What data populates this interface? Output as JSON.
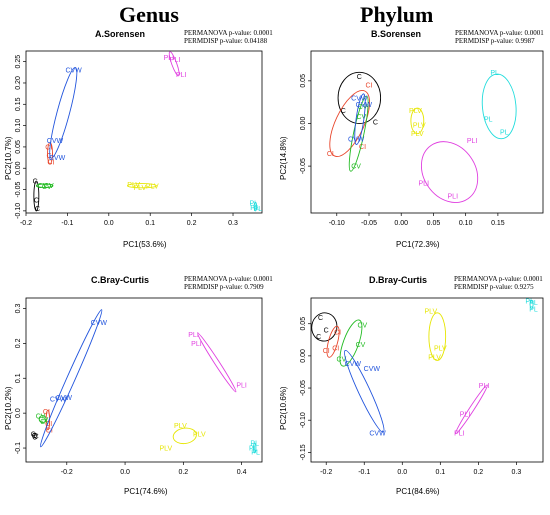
{
  "headings": {
    "left": "Genus",
    "right": "Phylum"
  },
  "chart_data": [
    {
      "type": "scatter",
      "title": "A.Sorensen",
      "stats": [
        "PERMANOVA p-value: 0.0001",
        "PERMDISP p-value: 0.04188"
      ],
      "xlabel": "PC1(53.6%)",
      "ylabel": "PC2(10.7%)",
      "xlim": [
        -0.2,
        0.37
      ],
      "ylim": [
        -0.105,
        0.275
      ],
      "xticks": [
        -0.2,
        -0.1,
        0.0,
        0.1,
        0.2,
        0.3
      ],
      "xtick_labels": [
        "-0.2",
        "-0.1",
        "0.0",
        "0.1",
        "0.2",
        "0.3"
      ],
      "yticks": [
        -0.1,
        -0.05,
        0.0,
        0.05,
        0.1,
        0.15,
        0.2,
        0.25
      ],
      "ytick_labels": [
        "-0.10",
        "-0.05",
        "0.00",
        "0.05",
        "0.10",
        "0.15",
        "0.20",
        "0.25"
      ],
      "groups": [
        {
          "label": "C",
          "color": "#000000",
          "points": [
            [
              -0.178,
              -0.03
            ],
            [
              -0.175,
              -0.075
            ],
            [
              -0.172,
              -0.095
            ]
          ],
          "ellipse": {
            "cx": -0.175,
            "cy": -0.065,
            "rx": 0.006,
            "ry": 0.035,
            "angle": 0
          }
        },
        {
          "label": "CI",
          "color": "#e8462c",
          "points": [
            [
              -0.145,
              0.05
            ],
            [
              -0.142,
              0.03
            ],
            [
              -0.14,
              0.015
            ]
          ],
          "ellipse": {
            "cx": -0.142,
            "cy": 0.035,
            "rx": 0.006,
            "ry": 0.025,
            "angle": 0
          }
        },
        {
          "label": "CV",
          "color": "#22bb22",
          "points": [
            [
              -0.16,
              -0.04
            ],
            [
              -0.15,
              -0.043
            ],
            [
              -0.145,
              -0.041
            ]
          ],
          "ellipse": {
            "cx": -0.155,
            "cy": -0.041,
            "rx": 0.02,
            "ry": 0.004,
            "angle": 0
          }
        },
        {
          "label": "CVW",
          "color": "#2255dd",
          "points": [
            [
              -0.085,
              0.23
            ],
            [
              -0.13,
              0.065
            ],
            [
              -0.125,
              0.025
            ]
          ],
          "ellipse": {
            "cx": -0.11,
            "cy": 0.13,
            "rx": 0.015,
            "ry": 0.11,
            "angle": 15
          }
        },
        {
          "label": "PLI",
          "color": "#e040e0",
          "points": [
            [
              0.145,
              0.26
            ],
            [
              0.16,
              0.255
            ],
            [
              0.175,
              0.22
            ]
          ],
          "ellipse": {
            "cx": 0.158,
            "cy": 0.245,
            "rx": 0.006,
            "ry": 0.03,
            "angle": -20
          }
        },
        {
          "label": "PLV",
          "color": "#e6e600",
          "points": [
            [
              0.06,
              -0.038
            ],
            [
              0.075,
              -0.045
            ],
            [
              0.105,
              -0.042
            ]
          ],
          "ellipse": {
            "cx": 0.08,
            "cy": -0.041,
            "rx": 0.035,
            "ry": 0.005,
            "angle": 0
          }
        },
        {
          "label": "PL",
          "color": "#20dcdc",
          "points": [
            [
              0.35,
              -0.082
            ],
            [
              0.352,
              -0.092
            ],
            [
              0.36,
              -0.095
            ]
          ],
          "ellipse": {
            "cx": 0.354,
            "cy": -0.09,
            "rx": 0.003,
            "ry": 0.01,
            "angle": 0
          }
        }
      ]
    },
    {
      "type": "scatter",
      "title": "B.Sorensen",
      "stats": [
        "PERMANOVA p-value: 0.0001",
        "PERMDISP p-value: 0.9987"
      ],
      "xlabel": "PC1(72.3%)",
      "ylabel": "PC2(14.8%)",
      "xlim": [
        -0.14,
        0.22
      ],
      "ylim": [
        -0.105,
        0.085
      ],
      "xticks": [
        -0.1,
        -0.05,
        0.0,
        0.05,
        0.1,
        0.15
      ],
      "xtick_labels": [
        "-0.10",
        "-0.05",
        "0.00",
        "0.05",
        "0.10",
        "0.15"
      ],
      "yticks": [
        -0.05,
        0.0,
        0.05
      ],
      "yticks_major": true,
      "ytick_labels": [
        "-0.05",
        "0.00",
        "0.05"
      ],
      "groups": [
        {
          "label": "C",
          "color": "#000000",
          "points": [
            [
              -0.065,
              0.055
            ],
            [
              -0.09,
              0.015
            ],
            [
              -0.04,
              0.002
            ]
          ],
          "ellipse": {
            "cx": -0.065,
            "cy": 0.03,
            "rx": 0.033,
            "ry": 0.03,
            "angle": 0
          }
        },
        {
          "label": "CI",
          "color": "#e8462c",
          "points": [
            [
              -0.05,
              0.045
            ],
            [
              -0.11,
              -0.035
            ],
            [
              -0.06,
              -0.027
            ]
          ],
          "ellipse": {
            "cx": -0.08,
            "cy": 0.0,
            "rx": 0.022,
            "ry": 0.042,
            "angle": 25
          }
        },
        {
          "label": "CV",
          "color": "#22bb22",
          "points": [
            [
              -0.06,
              0.02
            ],
            [
              -0.07,
              -0.05
            ],
            [
              -0.062,
              0.008
            ]
          ],
          "ellipse": {
            "cx": -0.066,
            "cy": -0.012,
            "rx": 0.008,
            "ry": 0.045,
            "angle": 12
          }
        },
        {
          "label": "CVW",
          "color": "#2255dd",
          "points": [
            [
              -0.065,
              0.03
            ],
            [
              -0.058,
              0.022
            ],
            [
              -0.07,
              -0.018
            ]
          ],
          "ellipse": {
            "cx": -0.064,
            "cy": 0.005,
            "rx": 0.006,
            "ry": 0.03,
            "angle": 8
          }
        },
        {
          "label": "PLV",
          "color": "#e6e600",
          "points": [
            [
              0.022,
              0.015
            ],
            [
              0.028,
              -0.002
            ],
            [
              0.025,
              -0.012
            ]
          ],
          "ellipse": {
            "cx": 0.025,
            "cy": 0.003,
            "rx": 0.01,
            "ry": 0.015,
            "angle": 0
          }
        },
        {
          "label": "PLI",
          "color": "#e040e0",
          "points": [
            [
              0.11,
              -0.02
            ],
            [
              0.035,
              -0.07
            ],
            [
              0.08,
              -0.085
            ]
          ],
          "ellipse": {
            "cx": 0.075,
            "cy": -0.057,
            "rx": 0.04,
            "ry": 0.038,
            "angle": -35
          }
        },
        {
          "label": "PL",
          "color": "#20dcdc",
          "points": [
            [
              0.145,
              0.06
            ],
            [
              0.135,
              0.005
            ],
            [
              0.16,
              -0.01
            ]
          ],
          "ellipse": {
            "cx": 0.152,
            "cy": 0.02,
            "rx": 0.026,
            "ry": 0.038,
            "angle": -5
          }
        }
      ]
    },
    {
      "type": "scatter",
      "title": "C.Bray-Curtis",
      "stats": [
        "PERMANOVA p-value: 0.0001",
        "PERMDISP p-value: 0.7909"
      ],
      "xlabel": "PC1(74.6%)",
      "ylabel": "PC2(10.2%)",
      "xlim": [
        -0.34,
        0.47
      ],
      "ylim": [
        -0.14,
        0.33
      ],
      "xticks": [
        -0.2,
        0.0,
        0.2,
        0.4
      ],
      "xtick_labels": [
        "-0.2",
        "0.0",
        "0.2",
        "0.4"
      ],
      "yticks": [
        -0.1,
        0.0,
        0.1,
        0.2,
        0.3
      ],
      "ytick_labels": [
        "-0.1",
        "0.0",
        "0.1",
        "0.2",
        "0.3"
      ],
      "groups": [
        {
          "label": "C",
          "color": "#000000",
          "points": [
            [
              -0.315,
              -0.06
            ],
            [
              -0.31,
              -0.068
            ],
            [
              -0.305,
              -0.065
            ]
          ],
          "ellipse": {
            "cx": -0.31,
            "cy": -0.064,
            "rx": 0.008,
            "ry": 0.006,
            "angle": 0
          }
        },
        {
          "label": "CI",
          "color": "#e8462c",
          "points": [
            [
              -0.27,
              0.005
            ],
            [
              -0.262,
              -0.03
            ],
            [
              -0.26,
              -0.048
            ]
          ],
          "ellipse": {
            "cx": -0.265,
            "cy": -0.02,
            "rx": 0.006,
            "ry": 0.028,
            "angle": 0
          }
        },
        {
          "label": "CV",
          "color": "#22bb22",
          "points": [
            [
              -0.29,
              -0.008
            ],
            [
              -0.28,
              -0.018
            ],
            [
              -0.275,
              -0.024
            ]
          ],
          "ellipse": {
            "cx": -0.283,
            "cy": -0.017,
            "rx": 0.012,
            "ry": 0.01,
            "angle": 0
          }
        },
        {
          "label": "CVW",
          "color": "#2255dd",
          "points": [
            [
              -0.09,
              0.26
            ],
            [
              -0.23,
              0.04
            ],
            [
              -0.21,
              0.045
            ]
          ],
          "ellipse": {
            "cx": -0.185,
            "cy": 0.1,
            "rx": 0.014,
            "ry": 0.215,
            "angle": 24
          }
        },
        {
          "label": "PLI",
          "color": "#e040e0",
          "points": [
            [
              0.235,
              0.225
            ],
            [
              0.245,
              0.2
            ],
            [
              0.4,
              0.08
            ]
          ],
          "ellipse": {
            "cx": 0.315,
            "cy": 0.145,
            "rx": 0.008,
            "ry": 0.1,
            "angle": -33
          }
        },
        {
          "label": "PLV",
          "color": "#e6e600",
          "points": [
            [
              0.19,
              -0.035
            ],
            [
              0.255,
              -0.06
            ],
            [
              0.14,
              -0.1
            ]
          ],
          "ellipse": {
            "cx": 0.205,
            "cy": -0.065,
            "rx": 0.04,
            "ry": 0.022,
            "angle": -8
          }
        },
        {
          "label": "PL",
          "color": "#20dcdc",
          "points": [
            [
              0.445,
              -0.085
            ],
            [
              0.44,
              -0.1
            ],
            [
              0.448,
              -0.112
            ]
          ],
          "ellipse": {
            "cx": 0.445,
            "cy": -0.1,
            "rx": 0.004,
            "ry": 0.014,
            "angle": 0
          }
        }
      ]
    },
    {
      "type": "scatter",
      "title": "D.Bray-Curtis",
      "stats": [
        "PERMANOVA p-value: 0.0001",
        "PERMDISP p-value: 0.9275"
      ],
      "xlabel": "PC1(84.6%)",
      "ylabel": "PC2(10.6%)",
      "xlim": [
        -0.24,
        0.37
      ],
      "ylim": [
        -0.165,
        0.09
      ],
      "xticks": [
        -0.2,
        -0.1,
        0.0,
        0.1,
        0.2,
        0.3
      ],
      "xtick_labels": [
        "-0.2",
        "-0.1",
        "0.0",
        "0.1",
        "0.2",
        "0.3"
      ],
      "yticks": [
        -0.15,
        -0.1,
        -0.05,
        0.0,
        0.05
      ],
      "ytick_labels": [
        "-0.15",
        "-0.10",
        "-0.05",
        "0.00",
        "0.05"
      ],
      "groups": [
        {
          "label": "C",
          "color": "#000000",
          "points": [
            [
              -0.215,
              0.06
            ],
            [
              -0.2,
              0.04
            ],
            [
              -0.22,
              0.03
            ]
          ],
          "ellipse": {
            "cx": -0.205,
            "cy": 0.045,
            "rx": 0.033,
            "ry": 0.022,
            "angle": 10
          }
        },
        {
          "label": "CI",
          "color": "#e8462c",
          "points": [
            [
              -0.17,
              0.037
            ],
            [
              -0.2,
              0.008
            ],
            [
              -0.175,
              0.012
            ]
          ],
          "ellipse": {
            "cx": -0.182,
            "cy": 0.022,
            "rx": 0.012,
            "ry": 0.025,
            "angle": 15
          }
        },
        {
          "label": "CV",
          "color": "#22bb22",
          "points": [
            [
              -0.105,
              0.048
            ],
            [
              -0.11,
              0.018
            ],
            [
              -0.16,
              -0.005
            ]
          ],
          "ellipse": {
            "cx": -0.135,
            "cy": 0.02,
            "rx": 0.02,
            "ry": 0.038,
            "angle": 20
          }
        },
        {
          "label": "CVW",
          "color": "#2255dd",
          "points": [
            [
              -0.13,
              -0.012
            ],
            [
              -0.08,
              -0.02
            ],
            [
              -0.065,
              -0.12
            ]
          ],
          "ellipse": {
            "cx": -0.1,
            "cy": -0.055,
            "rx": 0.015,
            "ry": 0.07,
            "angle": -25
          }
        },
        {
          "label": "PLV",
          "color": "#e6e600",
          "points": [
            [
              0.075,
              0.07
            ],
            [
              0.1,
              0.012
            ],
            [
              0.085,
              -0.002
            ]
          ],
          "ellipse": {
            "cx": 0.092,
            "cy": 0.03,
            "rx": 0.022,
            "ry": 0.037,
            "angle": 0
          }
        },
        {
          "label": "PLI",
          "color": "#e040e0",
          "points": [
            [
              0.215,
              -0.046
            ],
            [
              0.165,
              -0.09
            ],
            [
              0.15,
              -0.12
            ]
          ],
          "ellipse": {
            "cx": 0.182,
            "cy": -0.083,
            "rx": 0.006,
            "ry": 0.045,
            "angle": 33
          }
        },
        {
          "label": "PL",
          "color": "#20dcdc",
          "points": [
            [
              0.335,
              0.085
            ],
            [
              0.345,
              0.083
            ],
            [
              0.345,
              0.073
            ]
          ],
          "ellipse": {
            "cx": 0.34,
            "cy": 0.08,
            "rx": 0.004,
            "ry": 0.006,
            "angle": 0
          }
        }
      ]
    }
  ]
}
